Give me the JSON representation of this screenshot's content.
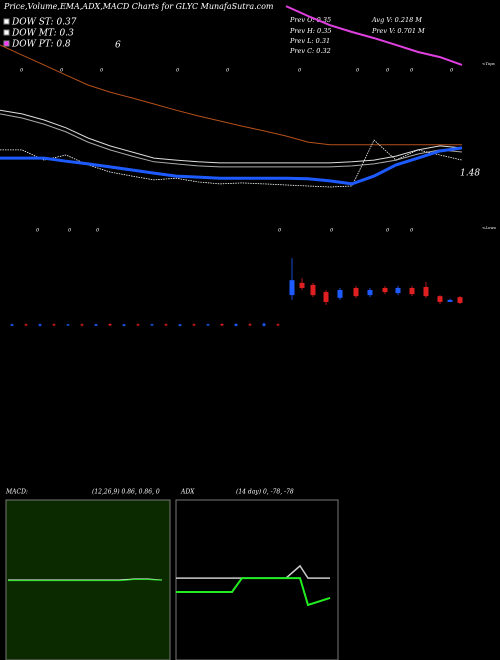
{
  "chart_data": [
    {
      "type": "candlestick",
      "title": "Price,Volume,EMA,ADX,MACD Charts for GLYC MunafaSutra.com",
      "legend_texts": [
        "DOW ST: 0.37",
        "DOW MT: 0.3",
        "DOW PT: 0.8"
      ],
      "legend_colors": [
        "#ffffff",
        "#ffffff",
        "#ff3bff"
      ],
      "legend_extra": "6",
      "info": [
        "Prev O: 0.35",
        "Avg V: 0.218 M",
        "Prev H: 0.35",
        "Prev V: 0.701 M",
        "Prev L: 0.31",
        "Prev C: 0.32"
      ],
      "last_label": "1.48",
      "tops_label": "<Tops",
      "lows_label": "<Lows",
      "top_zeros": [
        "0",
        "0",
        "0",
        "0",
        "0",
        "0",
        "0",
        "0",
        "0",
        "0"
      ],
      "low_zeros": [
        "0",
        "0",
        "0",
        "0",
        "0",
        "0",
        "0"
      ],
      "ylim": [
        0,
        100
      ],
      "series": [
        {
          "color": "#b5501a",
          "width": 1,
          "values": [
            86.8,
            83.8,
            80.9,
            77.9,
            75.0,
            72.9,
            71.2,
            69.4,
            67.6,
            65.9,
            64.4,
            62.9,
            61.5,
            60.0,
            58.2,
            57.4,
            57.4,
            57.4,
            57.4,
            57.4,
            57.4,
            57.4
          ]
        },
        {
          "color": "#e040e0",
          "width": 2,
          "values": [
            null,
            null,
            null,
            null,
            null,
            null,
            null,
            null,
            null,
            null,
            null,
            null,
            null,
            98.2,
            95.3,
            92.6,
            90.6,
            88.8,
            86.8,
            84.7,
            83.2,
            80.9
          ]
        },
        {
          "color": "#dddddd",
          "width": 1,
          "values": [
            67.6,
            66.5,
            64.7,
            62.4,
            59.4,
            57.1,
            55.3,
            53.5,
            52.9,
            52.4,
            52.1,
            52.1,
            52.1,
            52.1,
            52.1,
            52.1,
            52.4,
            52.9,
            54.1,
            55.9,
            57.1,
            56.5
          ]
        },
        {
          "color": "#aaaaaa",
          "width": 1,
          "values": [
            66.5,
            65.3,
            63.5,
            61.2,
            58.2,
            55.9,
            54.1,
            52.4,
            51.8,
            51.2,
            50.9,
            50.9,
            50.9,
            50.9,
            50.9,
            50.9,
            51.2,
            51.8,
            52.9,
            54.7,
            55.9,
            55.3
          ]
        },
        {
          "color": "#ffffff",
          "width": 0.8,
          "values": [
            55.9,
            55.9,
            52.9,
            54.4,
            51.5,
            49.4,
            48.2,
            47.1,
            47.6,
            46.5,
            45.9,
            46.2,
            45.9,
            45.6,
            45.3,
            45.0,
            45.3,
            58.8,
            52.9,
            55.9,
            54.4,
            52.9
          ]
        },
        {
          "color": "#1e5bff",
          "width": 3,
          "values": [
            53.5,
            53.5,
            53.5,
            52.6,
            51.8,
            50.9,
            50.0,
            49.1,
            48.2,
            47.9,
            47.6,
            47.6,
            47.6,
            47.6,
            47.4,
            46.8,
            45.9,
            48.2,
            51.5,
            53.5,
            55.6,
            56.5
          ]
        }
      ],
      "up_color": "#1e5bff",
      "down_color": "#e02020",
      "open": [
        4.2,
        4.6,
        4.2,
        4.6,
        4.3,
        4.6,
        4.2,
        4.7,
        4.2,
        4.6,
        4.3,
        4.6,
        4.2,
        4.6,
        4.3,
        4.7,
        4.2,
        4.6,
        4.2,
        4.6,
        13.2,
        16.8,
        16.2,
        14.1,
        12.4,
        15.3,
        13.2,
        15.3,
        13.8,
        15.3,
        15.6,
        12.9,
        11.2,
        12.6
      ],
      "high": [
        4.8,
        4.8,
        4.8,
        4.9,
        4.7,
        4.8,
        4.8,
        4.9,
        4.7,
        4.8,
        4.8,
        4.9,
        4.7,
        4.8,
        4.8,
        4.9,
        4.9,
        5.0,
        5.1,
        4.9,
        24.1,
        18.2,
        16.8,
        14.7,
        15.3,
        15.9,
        15.3,
        15.9,
        15.9,
        15.9,
        17.1,
        13.2,
        12.1,
        12.9
      ],
      "low": [
        4.1,
        4.1,
        4.0,
        4.1,
        4.1,
        4.0,
        4.1,
        4.1,
        4.0,
        4.1,
        4.1,
        4.1,
        4.0,
        4.1,
        4.1,
        4.1,
        4.0,
        4.1,
        4.0,
        4.1,
        11.8,
        14.7,
        12.6,
        10.3,
        11.8,
        12.4,
        12.6,
        13.5,
        13.2,
        12.9,
        12.4,
        10.6,
        11.2,
        10.6
      ],
      "close": [
        4.6,
        4.3,
        4.6,
        4.3,
        4.6,
        4.3,
        4.6,
        4.3,
        4.6,
        4.3,
        4.6,
        4.3,
        4.6,
        4.3,
        4.6,
        4.3,
        4.7,
        4.3,
        4.8,
        4.3,
        17.6,
        15.3,
        13.2,
        11.2,
        14.7,
        12.9,
        14.7,
        14.1,
        15.3,
        13.5,
        12.9,
        11.2,
        11.8,
        10.9
      ]
    },
    {
      "type": "line",
      "title": "MACD:",
      "params": "(12,26,9) 0.86, 0.86, 0",
      "background": "#0b2a00",
      "ylim": [
        0,
        100
      ],
      "series": [
        {
          "color": "#ffffff",
          "width": 1,
          "values": [
            50,
            50,
            50,
            50,
            50,
            50,
            50,
            50,
            50,
            50.6,
            50.6,
            50
          ]
        },
        {
          "color": "#22dd22",
          "width": 1,
          "values": [
            49.6,
            49.6,
            49.6,
            49.6,
            49.6,
            49.6,
            49.6,
            49.6,
            49.6,
            50.3,
            50.3,
            49.8
          ]
        }
      ]
    },
    {
      "type": "line",
      "title": "ADX",
      "params": "(14 day) 0, -78, -78",
      "background": "#000000",
      "ylim": [
        0,
        100
      ],
      "series": [
        {
          "color": "#cccccc",
          "width": 1.5,
          "values": [
            51.2,
            51.2,
            51.2,
            51.2,
            51.2,
            51.2,
            51.2,
            51.2,
            51.2,
            58.8,
            51.2,
            51.2
          ]
        },
        {
          "color": "#22ee22",
          "width": 2,
          "values": [
            42.5,
            42.5,
            42.5,
            42.5,
            42.5,
            51.2,
            51.2,
            51.2,
            51.2,
            51.2,
            34.4,
            38.8
          ]
        }
      ]
    }
  ]
}
